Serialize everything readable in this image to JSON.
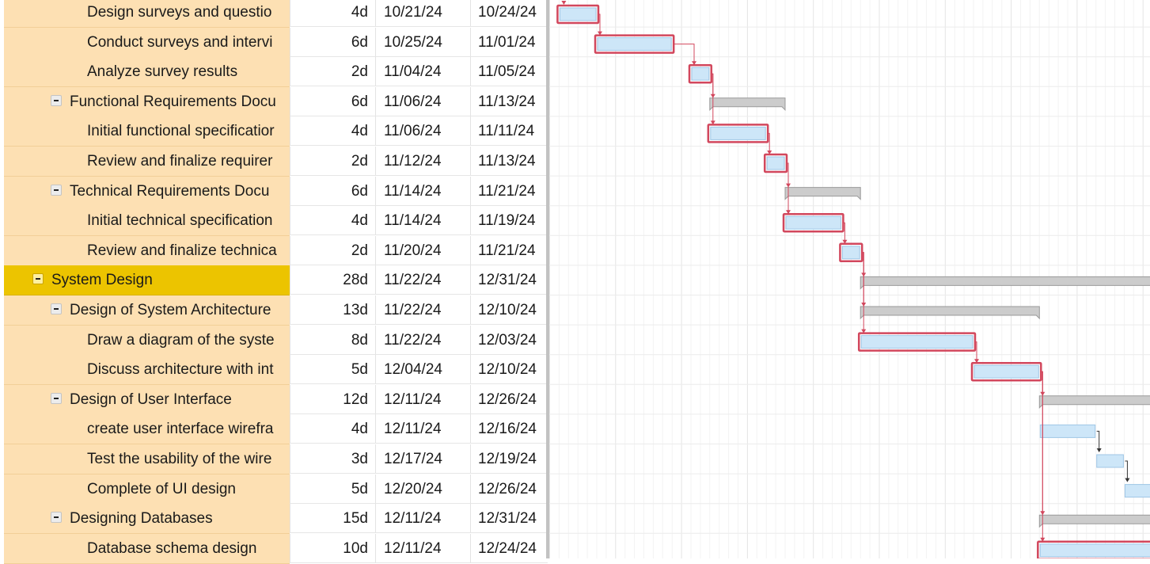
{
  "tasks": [
    {
      "name": "Design surveys and questio",
      "duration": "4d",
      "start": "10/21/24",
      "end": "10/24/24",
      "level": 2,
      "bar": "task",
      "critical": true
    },
    {
      "name": "Conduct surveys and intervi",
      "duration": "6d",
      "start": "10/25/24",
      "end": "11/01/24",
      "level": 2,
      "bar": "task",
      "critical": true
    },
    {
      "name": "Analyze survey results",
      "duration": "2d",
      "start": "11/04/24",
      "end": "11/05/24",
      "level": 2,
      "bar": "task",
      "critical": true
    },
    {
      "name": "Functional Requirements Docu",
      "duration": "6d",
      "start": "11/06/24",
      "end": "11/13/24",
      "level": 1,
      "bar": "summary",
      "critical": false
    },
    {
      "name": "Initial functional specificatior",
      "duration": "4d",
      "start": "11/06/24",
      "end": "11/11/24",
      "level": 2,
      "bar": "task",
      "critical": true
    },
    {
      "name": "Review and finalize requirer",
      "duration": "2d",
      "start": "11/12/24",
      "end": "11/13/24",
      "level": 2,
      "bar": "task",
      "critical": true
    },
    {
      "name": "Technical Requirements Docu",
      "duration": "6d",
      "start": "11/14/24",
      "end": "11/21/24",
      "level": 1,
      "bar": "summary",
      "critical": false
    },
    {
      "name": "Initial technical specification",
      "duration": "4d",
      "start": "11/14/24",
      "end": "11/19/24",
      "level": 2,
      "bar": "task",
      "critical": true
    },
    {
      "name": "Review and finalize technica",
      "duration": "2d",
      "start": "11/20/24",
      "end": "11/21/24",
      "level": 2,
      "bar": "task",
      "critical": true
    },
    {
      "name": "System Design",
      "duration": "28d",
      "start": "11/22/24",
      "end": "12/31/24",
      "level": 0,
      "bar": "summary",
      "critical": false
    },
    {
      "name": "Design of System Architecture",
      "duration": "13d",
      "start": "11/22/24",
      "end": "12/10/24",
      "level": 1,
      "bar": "summary",
      "critical": false
    },
    {
      "name": "Draw a diagram of the syste",
      "duration": "8d",
      "start": "11/22/24",
      "end": "12/03/24",
      "level": 2,
      "bar": "task",
      "critical": true
    },
    {
      "name": "Discuss architecture with int",
      "duration": "5d",
      "start": "12/04/24",
      "end": "12/10/24",
      "level": 2,
      "bar": "task",
      "critical": true
    },
    {
      "name": "Design of User Interface",
      "duration": "12d",
      "start": "12/11/24",
      "end": "12/26/24",
      "level": 1,
      "bar": "summary",
      "critical": false
    },
    {
      "name": "create user interface wirefra",
      "duration": "4d",
      "start": "12/11/24",
      "end": "12/16/24",
      "level": 2,
      "bar": "task",
      "critical": false
    },
    {
      "name": "Test the usability of the wire",
      "duration": "3d",
      "start": "12/17/24",
      "end": "12/19/24",
      "level": 2,
      "bar": "task",
      "critical": false
    },
    {
      "name": "Complete of UI design",
      "duration": "5d",
      "start": "12/20/24",
      "end": "12/26/24",
      "level": 2,
      "bar": "task",
      "critical": false
    },
    {
      "name": "Designing Databases",
      "duration": "15d",
      "start": "12/11/24",
      "end": "12/31/24",
      "level": 1,
      "bar": "summary",
      "critical": false
    },
    {
      "name": "Database schema design",
      "duration": "10d",
      "start": "12/11/24",
      "end": "12/24/24",
      "level": 2,
      "bar": "task",
      "critical": true
    }
  ],
  "colors": {
    "task_fill": "#cde6f8",
    "task_stroke": "#9fc6e6",
    "critical_stroke": "#d2475d",
    "summary_fill": "#cccccc",
    "summary_stroke": "#999999",
    "link_normal": "#333333",
    "top_summary_row": "#ecc400",
    "name_column": "#fde0b3"
  },
  "icons": {
    "collapse": "minus-square-icon"
  }
}
